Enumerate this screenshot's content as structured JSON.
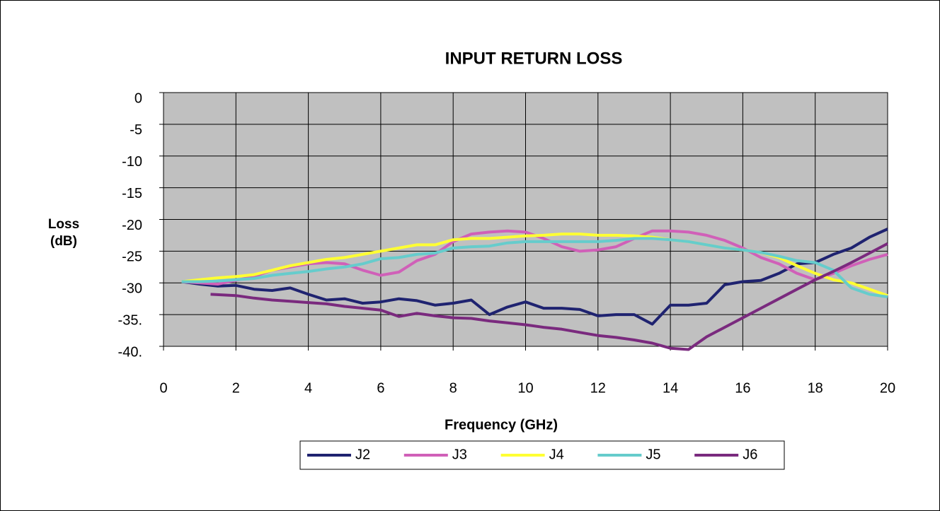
{
  "chart_data": {
    "type": "line",
    "title": "INPUT RETURN LOSS",
    "xlabel": "Frequency (GHz)",
    "ylabel": "Loss (dB)",
    "xlim": [
      0,
      20
    ],
    "xticks": [
      0,
      2,
      4,
      6,
      8,
      10,
      12,
      14,
      16,
      18,
      20
    ],
    "ylim": [
      -40,
      0
    ],
    "yticks": [
      0,
      -5,
      -10,
      -15,
      -20,
      -25,
      -30,
      {
        "value": -35,
        "label": "-35."
      },
      {
        "value": -40,
        "label": "-40."
      }
    ],
    "grid": true,
    "legend": "bottom",
    "series": [
      {
        "name": "J2",
        "color": "#1f2370",
        "x": [
          0.5,
          1,
          1.5,
          2,
          2.5,
          3,
          3.5,
          4,
          4.5,
          5,
          5.5,
          6,
          6.5,
          7,
          7.5,
          8,
          8.5,
          9,
          9.5,
          10,
          10.5,
          11,
          11.5,
          12,
          12.5,
          13,
          13.5,
          14,
          14.5,
          15,
          15.5,
          16,
          16.5,
          17,
          17.5,
          18,
          18.5,
          19,
          19.5,
          20
        ],
        "values": [
          -29.8,
          -30.2,
          -30.5,
          -30.4,
          -31,
          -31.2,
          -30.8,
          -31.8,
          -32.7,
          -32.5,
          -33.2,
          -33,
          -32.5,
          -32.8,
          -33.5,
          -33.2,
          -32.7,
          -35,
          -33.8,
          -33,
          -34,
          -34,
          -34.2,
          -35.2,
          -35,
          -35,
          -36.5,
          -33.5,
          -33.5,
          -33.2,
          -30.3,
          -29.8,
          -29.6,
          -28.5,
          -27,
          -26.8,
          -25.5,
          -24.5,
          -22.8,
          -21.5
        ]
      },
      {
        "name": "J3",
        "color": "#d060b8",
        "x": [
          0.5,
          1,
          1.5,
          2,
          2.5,
          3,
          3.5,
          4,
          4.5,
          5,
          5.5,
          6,
          6.5,
          7,
          7.5,
          8,
          8.5,
          9,
          9.5,
          10,
          10.5,
          11,
          11.5,
          12,
          12.5,
          13,
          13.5,
          14,
          14.5,
          15,
          15.5,
          16,
          16.5,
          17,
          17.5,
          18,
          18.5,
          19,
          19.5,
          20
        ],
        "values": [
          -29.8,
          -30,
          -30.2,
          -29.6,
          -29,
          -28,
          -27.5,
          -27,
          -26.8,
          -27,
          -28,
          -28.8,
          -28.3,
          -26.5,
          -25.5,
          -23.5,
          -22.3,
          -22,
          -21.8,
          -22,
          -23,
          -24.3,
          -25,
          -24.8,
          -24.3,
          -23,
          -21.8,
          -21.8,
          -22,
          -22.5,
          -23.3,
          -24.5,
          -26,
          -27,
          -28.5,
          -29.5,
          -28.5,
          -27.3,
          -26.3,
          -25.5
        ]
      },
      {
        "name": "J4",
        "color": "#ffff33",
        "x": [
          0.5,
          1,
          1.5,
          2,
          2.5,
          3,
          3.5,
          4,
          4.5,
          5,
          5.5,
          6,
          6.5,
          7,
          7.5,
          8,
          8.5,
          9,
          9.5,
          10,
          10.5,
          11,
          11.5,
          12,
          12.5,
          13,
          13.5,
          14,
          14.5,
          15,
          15.5,
          16,
          16.5,
          17,
          17.5,
          18,
          18.5,
          19,
          19.5,
          20
        ],
        "values": [
          -29.8,
          -29.5,
          -29.2,
          -29,
          -28.7,
          -28,
          -27.3,
          -26.8,
          -26.3,
          -26,
          -25.5,
          -25,
          -24.5,
          -24,
          -24,
          -23.2,
          -23,
          -23,
          -22.8,
          -22.6,
          -22.5,
          -22.3,
          -22.3,
          -22.5,
          -22.5,
          -22.6,
          -22.8,
          -23.2,
          -23.5,
          -24,
          -24.5,
          -24.8,
          -25.2,
          -26,
          -27.3,
          -28.5,
          -29.5,
          -30,
          -31,
          -32
        ]
      },
      {
        "name": "J5",
        "color": "#66cccc",
        "x": [
          0.5,
          1,
          1.5,
          2,
          2.5,
          3,
          3.5,
          4,
          4.5,
          5,
          5.5,
          6,
          6.5,
          7,
          7.5,
          8,
          8.5,
          9,
          9.5,
          10,
          10.5,
          11,
          11.5,
          12,
          12.5,
          13,
          13.5,
          14,
          14.5,
          15,
          15.5,
          16,
          16.5,
          17,
          17.5,
          18,
          18.5,
          19,
          19.5,
          20
        ],
        "values": [
          -29.8,
          -29.8,
          -29.7,
          -29.5,
          -29.3,
          -28.8,
          -28.5,
          -28.2,
          -27.8,
          -27.5,
          -27,
          -26.2,
          -26,
          -25.5,
          -25.3,
          -24.5,
          -24.3,
          -24.2,
          -23.7,
          -23.5,
          -23.5,
          -23.5,
          -23.5,
          -23.5,
          -23.3,
          -23,
          -23,
          -23.2,
          -23.5,
          -24,
          -24.5,
          -24.8,
          -25.2,
          -25.8,
          -26.5,
          -26.8,
          -28,
          -30.8,
          -31.8,
          -32.2
        ]
      },
      {
        "name": "J6",
        "color": "#7a2a7e",
        "x": [
          1.3,
          2,
          2.5,
          3,
          3.5,
          4,
          4.5,
          5,
          5.5,
          6,
          6.5,
          7,
          7.5,
          8,
          8.5,
          9,
          9.5,
          10,
          10.5,
          11,
          11.5,
          12,
          12.5,
          13,
          13.5,
          14,
          14.5,
          15,
          15.5,
          16,
          16.5,
          17,
          17.5,
          18,
          18.5,
          19,
          19.5,
          20
        ],
        "values": [
          -31.8,
          -32,
          -32.4,
          -32.7,
          -32.9,
          -33.1,
          -33.3,
          -33.7,
          -34,
          -34.3,
          -35.3,
          -34.8,
          -35.2,
          -35.5,
          -35.6,
          -36,
          -36.3,
          -36.6,
          -37,
          -37.3,
          -37.8,
          -38.3,
          -38.6,
          -39,
          -39.5,
          -40.3,
          -40.5,
          -38.5,
          -37,
          -35.5,
          -34,
          -32.5,
          -31,
          -29.5,
          -28.2,
          -26.8,
          -25.3,
          -23.8
        ]
      }
    ]
  }
}
